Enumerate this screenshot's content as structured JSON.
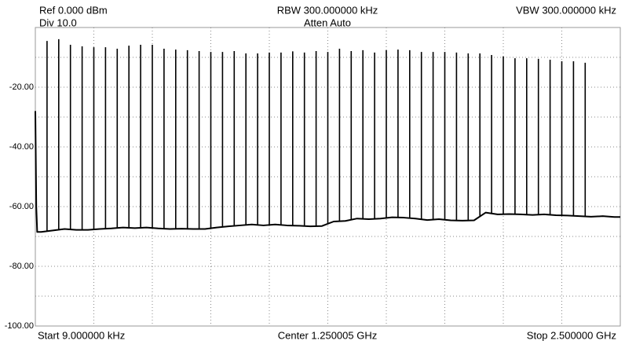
{
  "chart_data": {
    "type": "spectrum",
    "header": {
      "ref": "Ref 0.000 dBm",
      "div": "Div 10.0",
      "rbw": "RBW 300.000000 kHz",
      "atten": "Atten Auto",
      "vbw": "VBW 300.000000 kHz"
    },
    "footer": {
      "start": "Start 9.000000 kHz",
      "center": "Center 1.250005 GHz",
      "stop": "Stop 2.500000 GHz"
    },
    "xlim": [
      9e-06,
      2.5
    ],
    "x_divisions": 10,
    "ylim": [
      -100,
      0
    ],
    "yticks": [
      {
        "value": -100,
        "label": "-100.00"
      },
      {
        "value": -80,
        "label": "-80.00"
      },
      {
        "value": -60,
        "label": "-60.00"
      },
      {
        "value": -40,
        "label": "-40.00"
      },
      {
        "value": -20,
        "label": "-20.00"
      }
    ],
    "yminor": [
      -90,
      -70,
      -50,
      -30,
      -10
    ],
    "grid": true,
    "color": "#000000",
    "floor": {
      "x": [
        9e-06,
        0.004,
        0.008,
        0.025,
        0.075,
        0.125,
        0.175,
        0.225,
        0.275,
        0.325,
        0.375,
        0.425,
        0.475,
        0.525,
        0.575,
        0.625,
        0.675,
        0.725,
        0.775,
        0.825,
        0.875,
        0.925,
        0.975,
        1.025,
        1.075,
        1.125,
        1.175,
        1.225,
        1.275,
        1.325,
        1.375,
        1.425,
        1.475,
        1.525,
        1.575,
        1.625,
        1.675,
        1.725,
        1.775,
        1.825,
        1.875,
        1.925,
        1.975,
        2.025,
        2.075,
        2.125,
        2.175,
        2.225,
        2.275,
        2.325,
        2.375,
        2.425,
        2.475,
        2.5
      ],
      "values": [
        -28,
        -60,
        -68.5,
        -68.5,
        -68,
        -67.5,
        -67.8,
        -67.8,
        -67.5,
        -67.3,
        -67,
        -67.2,
        -67,
        -67.3,
        -67.5,
        -67.4,
        -67.5,
        -67.5,
        -67,
        -66.6,
        -66.3,
        -66,
        -66.3,
        -66,
        -66.3,
        -66.4,
        -66.6,
        -66.5,
        -65,
        -64.8,
        -64,
        -64.2,
        -64,
        -63.6,
        -63.7,
        -64,
        -64.5,
        -64.2,
        -64.6,
        -64.7,
        -64.6,
        -62,
        -62.6,
        -62.5,
        -62.6,
        -62.8,
        -62.6,
        -62.9,
        -63,
        -63.2,
        -63.4,
        -63.2,
        -63.5,
        -63.5
      ]
    },
    "peaks": {
      "x": [
        0.05,
        0.1,
        0.15,
        0.2,
        0.25,
        0.3,
        0.35,
        0.4,
        0.45,
        0.5,
        0.55,
        0.6,
        0.65,
        0.7,
        0.75,
        0.8,
        0.85,
        0.9,
        0.95,
        1.0,
        1.05,
        1.1,
        1.15,
        1.2,
        1.25,
        1.3,
        1.35,
        1.4,
        1.45,
        1.5,
        1.55,
        1.6,
        1.65,
        1.7,
        1.75,
        1.8,
        1.85,
        1.9,
        1.95,
        2.0,
        2.05,
        2.1,
        2.15,
        2.2,
        2.25,
        2.3,
        2.35
      ],
      "values": [
        -4.5,
        -3.9,
        -5.8,
        -6.3,
        -6.6,
        -6.6,
        -7.1,
        -6.1,
        -5.8,
        -5.8,
        -7.1,
        -7.4,
        -7.6,
        -7.9,
        -8.2,
        -8.2,
        -7.9,
        -8.7,
        -8.7,
        -8.4,
        -8.4,
        -8.0,
        -8.4,
        -7.9,
        -8.2,
        -7.1,
        -7.9,
        -7.6,
        -8.4,
        -7.6,
        -7.4,
        -7.6,
        -8.2,
        -8.2,
        -8.2,
        -8.4,
        -8.7,
        -8.7,
        -9.2,
        -9.7,
        -10.3,
        -10.3,
        -10.5,
        -10.8,
        -11.3,
        -11.3,
        -11.8
      ]
    }
  }
}
